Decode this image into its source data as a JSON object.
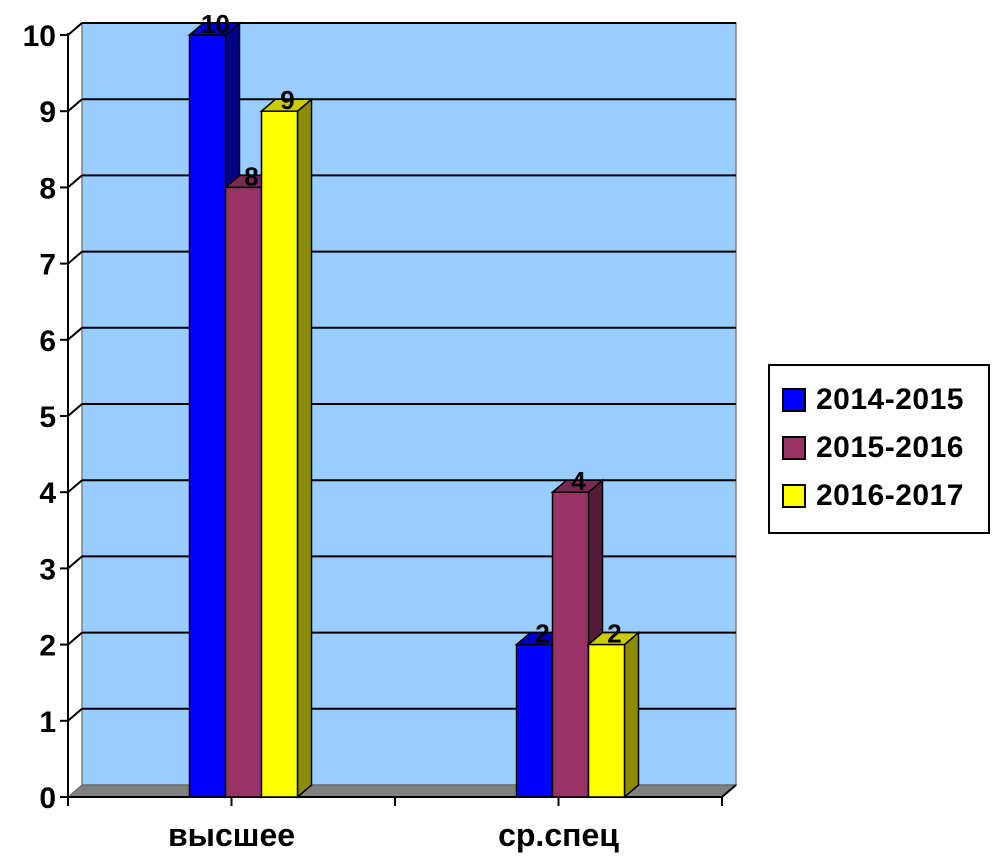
{
  "chart_data": {
    "type": "bar",
    "categories": [
      "высшее",
      "ср.спец"
    ],
    "series": [
      {
        "name": "2014-2015",
        "values": [
          10,
          2
        ],
        "color": "#0000ff"
      },
      {
        "name": "2015-2016",
        "values": [
          8,
          4
        ],
        "color": "#993366"
      },
      {
        "name": "2016-2017",
        "values": [
          9,
          2
        ],
        "color": "#ffff00"
      }
    ],
    "ylim": [
      0,
      10
    ],
    "yticks": [
      "0",
      "1",
      "2",
      "3",
      "4",
      "5",
      "6",
      "7",
      "8",
      "9",
      "10"
    ],
    "grid": true,
    "legend": "right",
    "plot_background": "#99ccff",
    "floor_color": "#808080",
    "style": "3d-clustered-column"
  }
}
